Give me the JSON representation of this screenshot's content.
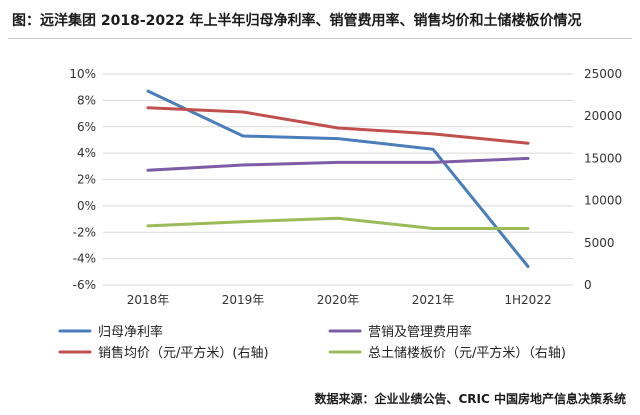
{
  "title": "图：远洋集团 2018-2022 年上半年归母净利率、销管费用率、销售均价和土储楼板价情况",
  "source": "数据来源：企业业绩公告、CRIC 中国房地产信息决策系统",
  "chart_data": {
    "type": "line",
    "categories": [
      "2018年",
      "2019年",
      "2020年",
      "2021年",
      "1H2022"
    ],
    "y_left": {
      "ticks": [
        "10%",
        "8%",
        "6%",
        "4%",
        "2%",
        "0%",
        "-2%",
        "-4%",
        "-6%"
      ],
      "lim": [
        -6,
        10
      ]
    },
    "y_right": {
      "ticks": [
        "25000",
        "20000",
        "15000",
        "10000",
        "5000",
        "0"
      ],
      "lim": [
        0,
        25000
      ]
    },
    "grid": true,
    "legend_position": "bottom",
    "series": [
      {
        "name": "归母净利率",
        "axis": "left",
        "color": "#4a7ebb",
        "values": [
          8.7,
          5.3,
          5.1,
          4.3,
          -4.6
        ]
      },
      {
        "name": "营销及管理费用率",
        "axis": "left",
        "color": "#7d5ba6",
        "values": [
          2.7,
          3.1,
          3.3,
          3.3,
          3.6
        ]
      },
      {
        "name": "销售均价（元/平方米）(右轴)",
        "axis": "right",
        "color": "#c0504d",
        "values": [
          21000,
          20500,
          18600,
          17900,
          16800
        ]
      },
      {
        "name": "总土储楼板价（元/平方米）（右轴)",
        "axis": "right",
        "color": "#9bbb59",
        "values": [
          7000,
          7500,
          7900,
          6700,
          6700
        ]
      }
    ]
  }
}
